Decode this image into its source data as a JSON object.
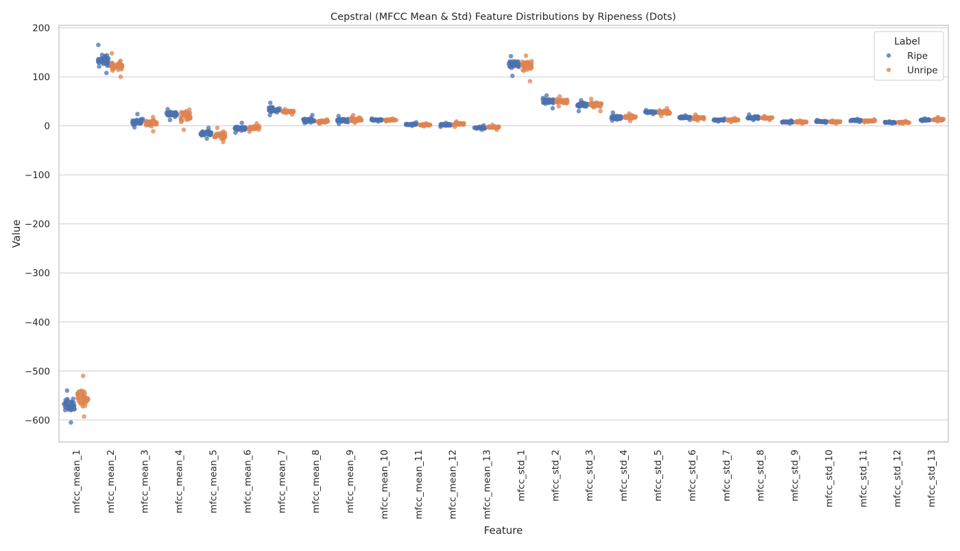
{
  "chart_data": {
    "type": "scatter",
    "title": "Cepstral (MFCC Mean & Std) Feature Distributions by Ripeness (Dots)",
    "xlabel": "Feature",
    "ylabel": "Value",
    "ylim": [
      -645,
      205
    ],
    "yticks": [
      200,
      100,
      0,
      -100,
      -200,
      -300,
      -400,
      -500,
      -600
    ],
    "ytick_labels": [
      "200",
      "100",
      "0",
      "−100",
      "−200",
      "−300",
      "−400",
      "−500",
      "−600"
    ],
    "grid": "horizontal",
    "legend_position": "top-right",
    "legend_title": "Label",
    "categories": [
      "mfcc_mean_1",
      "mfcc_mean_2",
      "mfcc_mean_3",
      "mfcc_mean_4",
      "mfcc_mean_5",
      "mfcc_mean_6",
      "mfcc_mean_7",
      "mfcc_mean_8",
      "mfcc_mean_9",
      "mfcc_mean_10",
      "mfcc_mean_11",
      "mfcc_mean_12",
      "mfcc_mean_13",
      "mfcc_std_1",
      "mfcc_std_2",
      "mfcc_std_3",
      "mfcc_std_4",
      "mfcc_std_5",
      "mfcc_std_6",
      "mfcc_std_7",
      "mfcc_std_8",
      "mfcc_std_9",
      "mfcc_std_10",
      "mfcc_std_11",
      "mfcc_std_12",
      "mfcc_std_13"
    ],
    "series": [
      {
        "name": "Ripe",
        "color": "#4c72b0",
        "center": [
          -570,
          133,
          8,
          24,
          -15,
          -5,
          33,
          11,
          11,
          12,
          3,
          2,
          -4,
          125,
          50,
          43,
          17,
          28,
          17,
          12,
          17,
          8,
          9,
          11,
          7,
          12
        ],
        "min": [
          -605,
          108,
          -3,
          12,
          -26,
          -14,
          22,
          6,
          4,
          9,
          0,
          -2,
          -8,
          102,
          36,
          30,
          11,
          24,
          12,
          9,
          12,
          5,
          6,
          8,
          5,
          10
        ],
        "max": [
          -540,
          165,
          24,
          34,
          -4,
          6,
          47,
          22,
          20,
          15,
          7,
          6,
          1,
          142,
          62,
          52,
          27,
          32,
          21,
          15,
          23,
          11,
          12,
          14,
          9,
          15
        ]
      },
      {
        "name": "Unripe",
        "color": "#dd8452",
        "center": [
          -555,
          122,
          7,
          20,
          -20,
          -4,
          29,
          9,
          13,
          12,
          2,
          4,
          -3,
          122,
          50,
          43,
          18,
          28,
          16,
          12,
          16,
          8,
          8,
          10,
          7,
          13
        ],
        "min": [
          -593,
          100,
          -11,
          -8,
          -33,
          -12,
          23,
          4,
          6,
          9,
          -1,
          -2,
          -8,
          91,
          40,
          30,
          10,
          20,
          11,
          8,
          12,
          5,
          5,
          7,
          5,
          9
        ],
        "max": [
          -510,
          148,
          18,
          33,
          -4,
          5,
          34,
          13,
          22,
          15,
          5,
          9,
          2,
          143,
          60,
          55,
          25,
          36,
          23,
          16,
          20,
          11,
          11,
          13,
          10,
          18
        ]
      }
    ]
  }
}
